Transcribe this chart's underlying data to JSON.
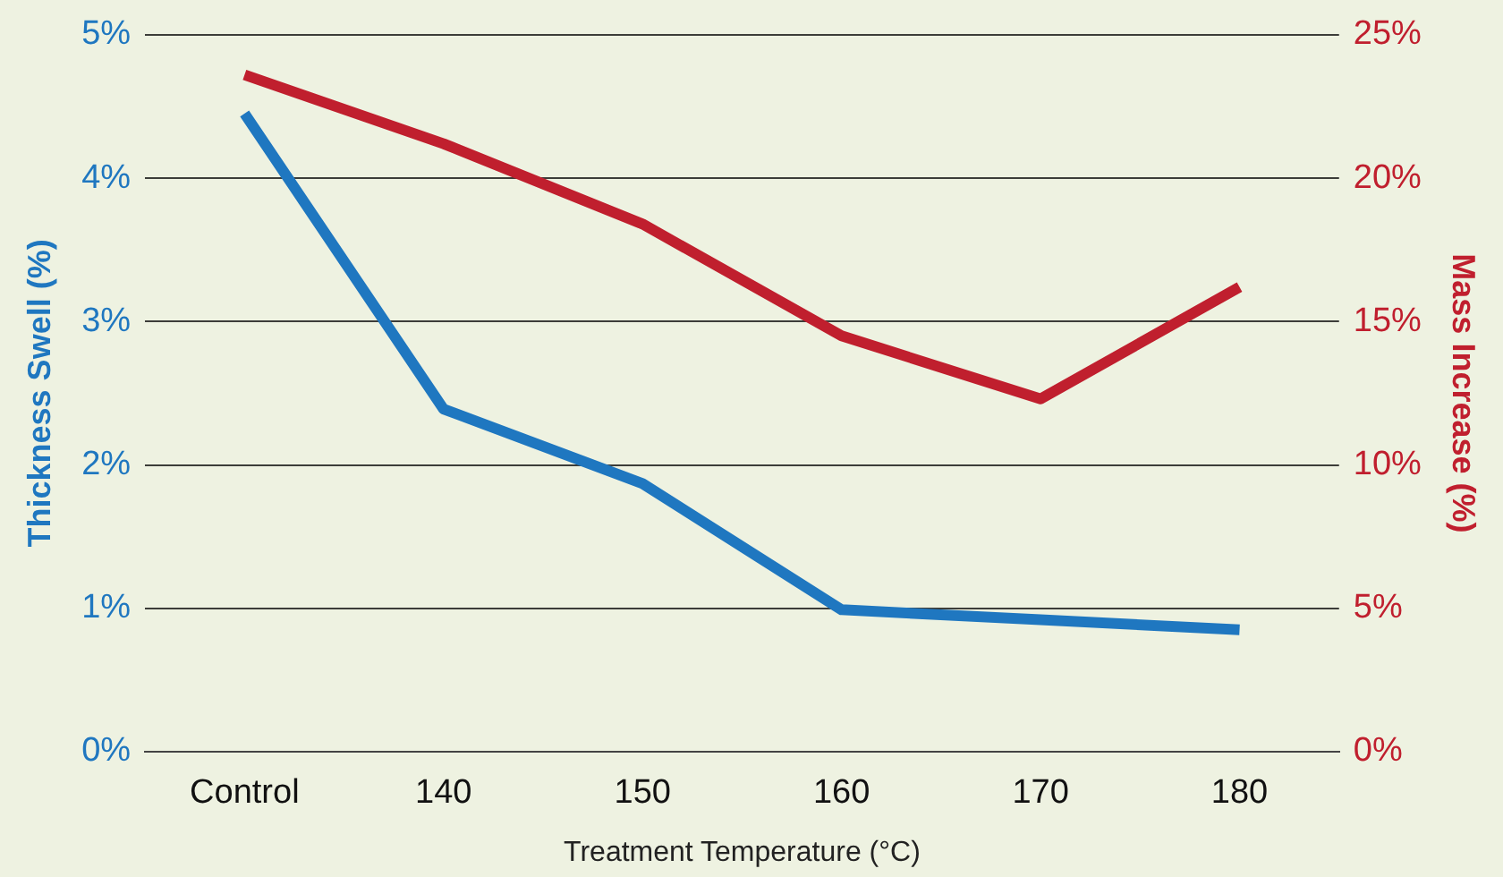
{
  "chart_data": {
    "type": "line",
    "xlabel": "Treatment Temperature (°C)",
    "ylabel": "Thickness Swell (%)",
    "y2label": "Mass Increase (%)",
    "categories": [
      "Control",
      "140",
      "150",
      "160",
      "170",
      "180"
    ],
    "series": [
      {
        "name": null,
        "color": "#1f77c0",
        "values": [
          4.45,
          2.39,
          1.87,
          0.99,
          0.92,
          0.85
        ]
      },
      {
        "name": null,
        "color": "#c01f2e",
        "axis": "y2",
        "values": [
          23.6,
          21.2,
          18.4,
          14.5,
          12.3,
          16.2
        ]
      }
    ],
    "ylim": [
      0,
      5
    ],
    "yticks": [
      {
        "value": 0,
        "label": "0%"
      },
      {
        "value": 1,
        "label": "1%"
      },
      {
        "value": 2,
        "label": "2%"
      },
      {
        "value": 3,
        "label": "3%"
      },
      {
        "value": 4,
        "label": "4%"
      },
      {
        "value": 5,
        "label": "5%"
      }
    ],
    "y2lim": [
      0,
      25
    ],
    "y2ticks": [
      {
        "value": 0,
        "label": "0%"
      },
      {
        "value": 5,
        "label": "5%"
      },
      {
        "value": 10,
        "label": "10%"
      },
      {
        "value": 15,
        "label": "15%"
      },
      {
        "value": 20,
        "label": "20%"
      },
      {
        "value": 25,
        "label": "25%"
      }
    ],
    "grid": "y",
    "legend": false,
    "marker": "none",
    "line_style": "solid"
  }
}
